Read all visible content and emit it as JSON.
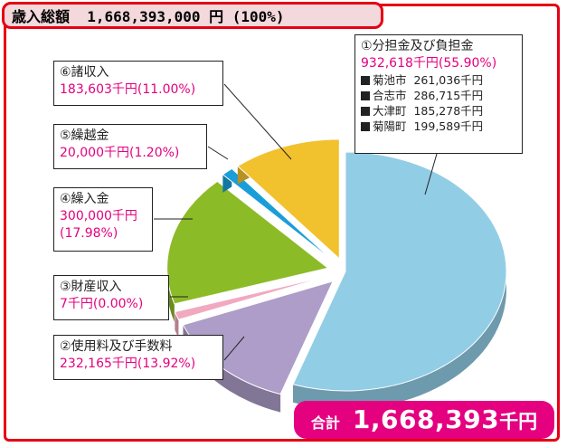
{
  "title": "歳入総額  1,668,393,000 円 (100%)",
  "total": {
    "label": "合計",
    "value": "1,668,393",
    "unit": "千円"
  },
  "chart_data": {
    "type": "pie",
    "title": "歳入総額  1,668,393,000 円 (100%)",
    "slices": [
      {
        "name": "①分担金及び負担金",
        "value": 932618,
        "value_text": "932,618千円(55.90%)",
        "percent": 55.9,
        "color": "#92cde6"
      },
      {
        "name": "②使用料及び手数料",
        "value": 232165,
        "value_text": "232,165千円(13.92%)",
        "percent": 13.92,
        "color": "#ad9dc8"
      },
      {
        "name": "③財産収入",
        "value": 7,
        "value_text": "7千円(0.00%)",
        "percent": 0.0,
        "color": "#f0a9bf"
      },
      {
        "name": "④繰入金",
        "value": 300000,
        "value_text": "300,000千円",
        "value_text2": "(17.98%)",
        "percent": 17.98,
        "color": "#8cbb28"
      },
      {
        "name": "⑤繰越金",
        "value": 20000,
        "value_text": "20,000千円(1.20%)",
        "percent": 1.2,
        "color": "#1a9ed8"
      },
      {
        "name": "⑥諸収入",
        "value": 183603,
        "value_text": "183,603千円(11.00%)",
        "percent": 11.0,
        "color": "#f2c12e"
      }
    ],
    "breakdown": [
      {
        "name": "菊池市",
        "value": "261,036千円"
      },
      {
        "name": "合志市",
        "value": "286,715千円"
      },
      {
        "name": "大津町",
        "value": "185,278千円"
      },
      {
        "name": "菊陽町",
        "value": "199,589千円"
      }
    ]
  }
}
